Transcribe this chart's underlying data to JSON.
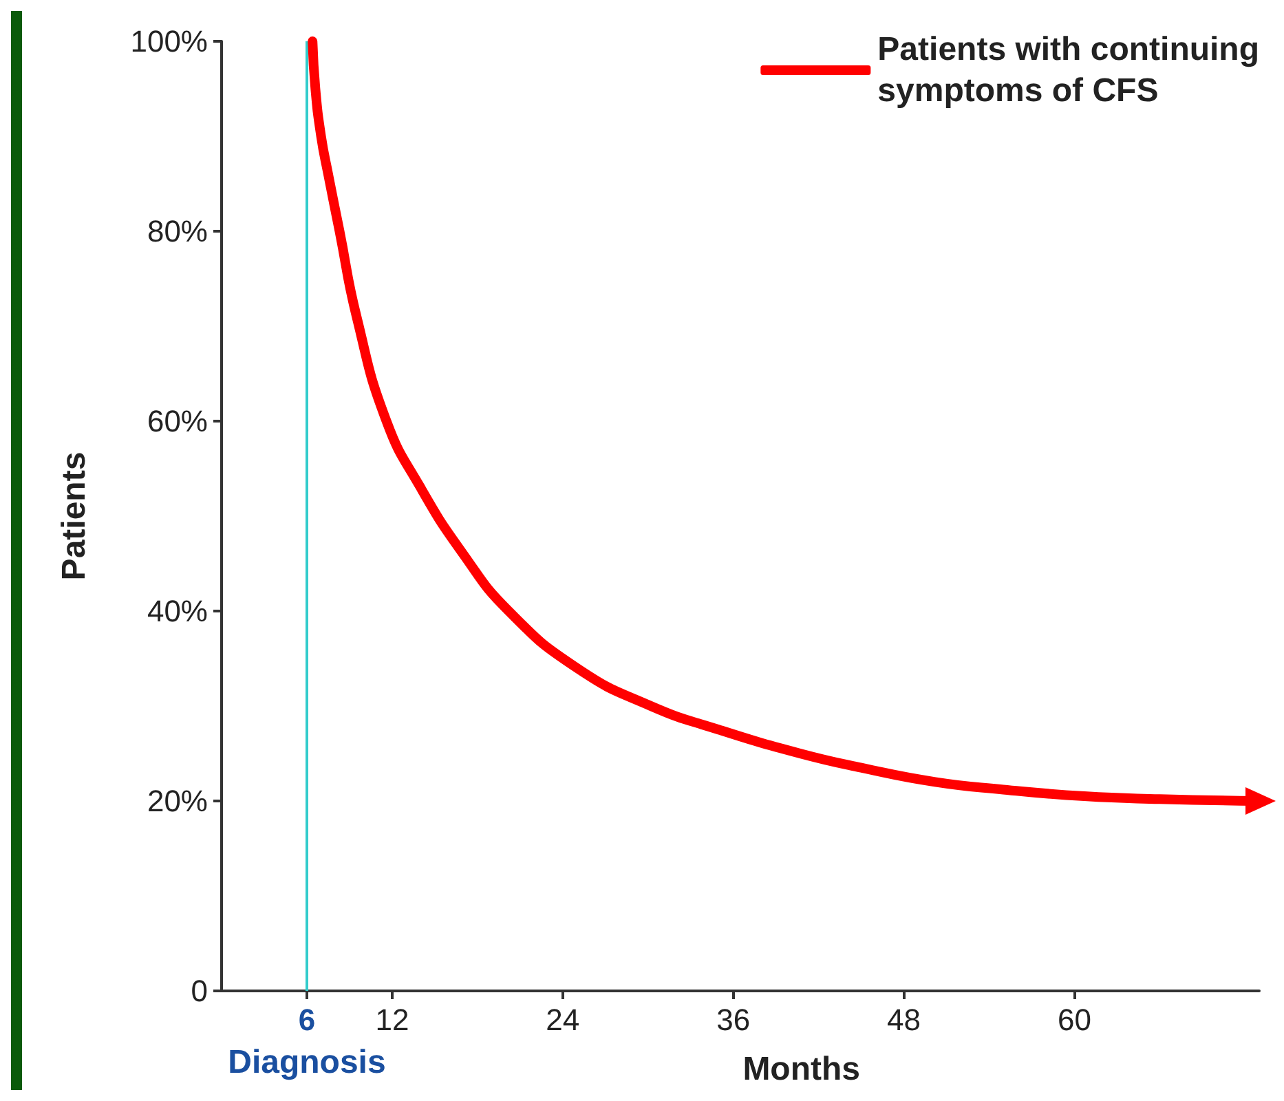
{
  "chart_data": {
    "type": "line",
    "xlabel": "Months",
    "ylabel": "Patients",
    "x": [
      6.4,
      6.6,
      7,
      7.5,
      8.3,
      9.5,
      11.6,
      14,
      17,
      20.2,
      25,
      30.2,
      35,
      40.7,
      45,
      50.2,
      55,
      60.7,
      66,
      72.8
    ],
    "series": [
      {
        "name": "Patients with continuing\nsymptoms of CFS",
        "color": "#ff0000",
        "values": [
          100,
          95,
          90,
          86,
          80,
          71,
          60,
          53,
          46,
          40,
          34,
          30,
          27.5,
          25,
          23.5,
          22,
          21.2,
          20.5,
          20.2,
          20
        ]
      }
    ],
    "xlim": [
      0,
      73
    ],
    "xticks": [
      6,
      12,
      24,
      36,
      48,
      60
    ],
    "ylim": [
      0,
      100
    ],
    "yticks": [
      {
        "value": 0,
        "label": "0"
      },
      {
        "value": 20,
        "label": "20%"
      },
      {
        "value": 40,
        "label": "40%"
      },
      {
        "value": 60,
        "label": "60%"
      },
      {
        "value": 80,
        "label": "80%"
      },
      {
        "value": 100,
        "label": "100%"
      }
    ],
    "ref_lines": [
      {
        "axis": "x",
        "value": 6,
        "label": "Diagnosis",
        "color": "#33cccc"
      }
    ],
    "grid": false,
    "legend": "top right",
    "line_style": "solid"
  }
}
